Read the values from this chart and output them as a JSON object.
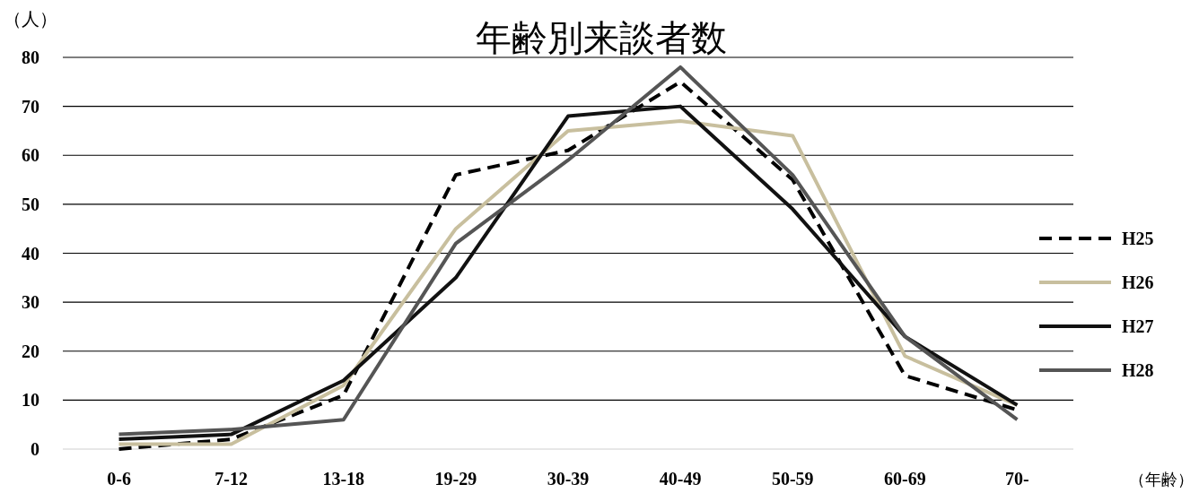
{
  "chart_data": {
    "type": "line",
    "title": "年齢別来談者数",
    "ylabel": "（人）",
    "xlabel": "（年齢）",
    "categories": [
      "0-6",
      "7-12",
      "13-18",
      "19-29",
      "30-39",
      "40-49",
      "50-59",
      "60-69",
      "70-"
    ],
    "series": [
      {
        "name": "H25",
        "color": "#000000",
        "line_style": "dashed",
        "values": [
          0,
          2,
          11,
          56,
          61,
          75,
          55,
          15,
          8
        ]
      },
      {
        "name": "H26",
        "color": "#c8bf9e",
        "values": [
          1,
          1,
          13,
          45,
          65,
          67,
          64,
          19,
          9
        ]
      },
      {
        "name": "H27",
        "color": "#111111",
        "values": [
          2,
          3,
          14,
          35,
          68,
          70,
          49,
          23,
          9
        ]
      },
      {
        "name": "H28",
        "color": "#555555",
        "values": [
          3,
          4,
          6,
          42,
          59,
          78,
          56,
          23,
          6
        ]
      }
    ],
    "ylim": [
      0,
      80
    ],
    "yticks": [
      0,
      10,
      20,
      30,
      40,
      50,
      60,
      70,
      80
    ],
    "grid": "y",
    "legend": "right",
    "marker": "none"
  }
}
